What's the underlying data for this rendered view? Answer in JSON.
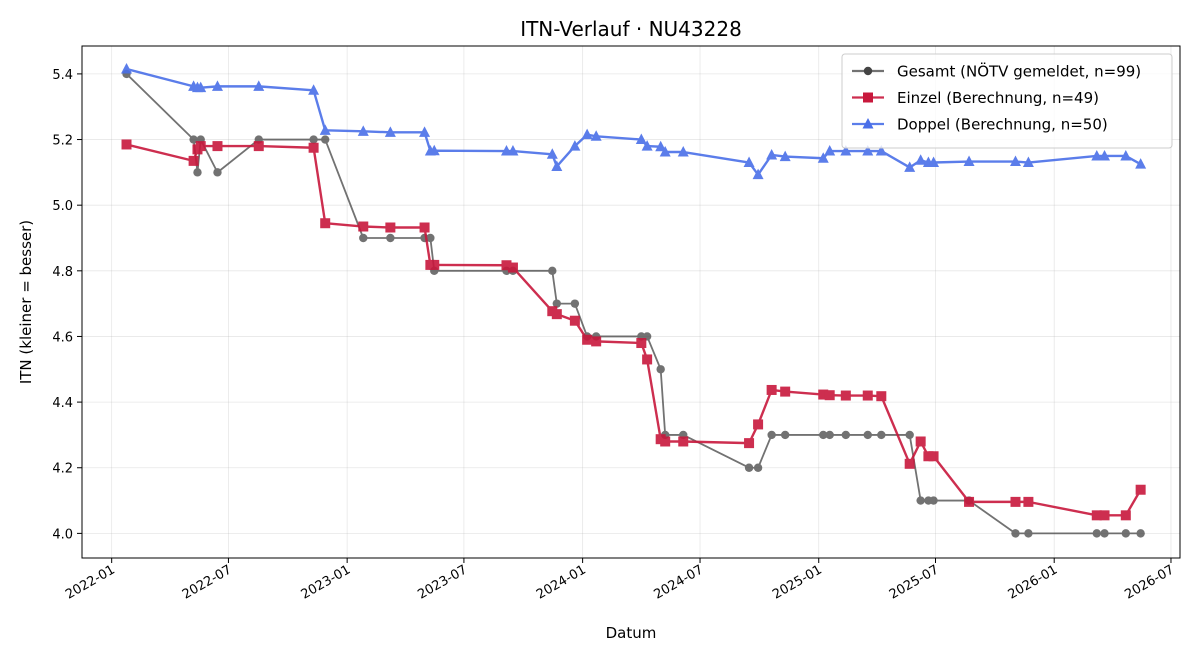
{
  "chart_data": {
    "type": "line",
    "title": "ITN-Verlauf · NU43228",
    "xlabel": "Datum",
    "ylabel": "ITN  (kleiner = besser)",
    "xlim": [
      "2021-11-16",
      "2026-07-15"
    ],
    "ylim": [
      3.925,
      5.485
    ],
    "x_ticks": [
      "2022-01-01",
      "2022-07-01",
      "2023-01-01",
      "2023-07-01",
      "2024-01-01",
      "2024-07-01",
      "2025-01-01",
      "2025-07-01",
      "2026-01-01",
      "2026-07-01"
    ],
    "x_tick_labels": [
      "2022-01",
      "2022-07",
      "2023-01",
      "2023-07",
      "2024-01",
      "2024-07",
      "2025-01",
      "2025-07",
      "2026-01",
      "2026-07"
    ],
    "y_ticks": [
      4.0,
      4.2,
      4.4,
      4.6,
      4.8,
      5.0,
      5.2,
      5.4
    ],
    "y_tick_labels": [
      "4.0",
      "4.2",
      "4.4",
      "4.6",
      "4.8",
      "5.0",
      "5.2",
      "5.4"
    ],
    "grid": true,
    "legend_position": "top-right",
    "series": [
      {
        "name": "Gesamt (NÖTV gemeldet, n=99)",
        "color": "#444444",
        "marker": "circle",
        "points": [
          [
            "2022-01-24",
            5.4
          ],
          [
            "2022-05-08",
            5.2
          ],
          [
            "2022-05-14",
            5.1
          ],
          [
            "2022-05-19",
            5.2
          ],
          [
            "2022-06-14",
            5.1
          ],
          [
            "2022-08-17",
            5.2
          ],
          [
            "2022-11-10",
            5.2
          ],
          [
            "2022-11-28",
            5.2
          ],
          [
            "2023-01-26",
            4.9
          ],
          [
            "2023-03-09",
            4.9
          ],
          [
            "2023-05-01",
            4.9
          ],
          [
            "2023-05-10",
            4.9
          ],
          [
            "2023-05-16",
            4.8
          ],
          [
            "2023-09-05",
            4.8
          ],
          [
            "2023-09-15",
            4.8
          ],
          [
            "2023-11-15",
            4.8
          ],
          [
            "2023-11-22",
            4.7
          ],
          [
            "2023-12-20",
            4.7
          ],
          [
            "2024-01-08",
            4.6
          ],
          [
            "2024-01-22",
            4.6
          ],
          [
            "2024-04-01",
            4.6
          ],
          [
            "2024-04-10",
            4.6
          ],
          [
            "2024-05-01",
            4.5
          ],
          [
            "2024-05-08",
            4.3
          ],
          [
            "2024-06-05",
            4.3
          ],
          [
            "2024-09-15",
            4.2
          ],
          [
            "2024-09-29",
            4.2
          ],
          [
            "2024-10-20",
            4.3
          ],
          [
            "2024-11-10",
            4.3
          ],
          [
            "2025-01-08",
            4.3
          ],
          [
            "2025-01-18",
            4.3
          ],
          [
            "2025-02-12",
            4.3
          ],
          [
            "2025-03-18",
            4.3
          ],
          [
            "2025-04-08",
            4.3
          ],
          [
            "2025-05-22",
            4.3
          ],
          [
            "2025-06-08",
            4.1
          ],
          [
            "2025-06-20",
            4.1
          ],
          [
            "2025-06-28",
            4.1
          ],
          [
            "2025-08-22",
            4.1
          ],
          [
            "2025-11-02",
            4.0
          ],
          [
            "2025-11-22",
            4.0
          ],
          [
            "2026-03-08",
            4.0
          ],
          [
            "2026-03-20",
            4.0
          ],
          [
            "2026-04-22",
            4.0
          ],
          [
            "2026-05-15",
            4.0
          ]
        ]
      },
      {
        "name": "Einzel (Berechnung, n=49)",
        "color": "#c8183c",
        "marker": "square",
        "points": [
          [
            "2022-01-24",
            5.185
          ],
          [
            "2022-05-08",
            5.135
          ],
          [
            "2022-05-14",
            5.17
          ],
          [
            "2022-05-19",
            5.18
          ],
          [
            "2022-06-14",
            5.18
          ],
          [
            "2022-08-17",
            5.18
          ],
          [
            "2022-11-10",
            5.175
          ],
          [
            "2022-11-28",
            4.945
          ],
          [
            "2023-01-26",
            4.935
          ],
          [
            "2023-03-09",
            4.932
          ],
          [
            "2023-05-01",
            4.932
          ],
          [
            "2023-05-10",
            4.818
          ],
          [
            "2023-05-16",
            4.818
          ],
          [
            "2023-09-05",
            4.817
          ],
          [
            "2023-09-15",
            4.81
          ],
          [
            "2023-11-15",
            4.677
          ],
          [
            "2023-11-22",
            4.668
          ],
          [
            "2023-12-20",
            4.648
          ],
          [
            "2024-01-08",
            4.59
          ],
          [
            "2024-01-22",
            4.585
          ],
          [
            "2024-04-01",
            4.58
          ],
          [
            "2024-04-10",
            4.53
          ],
          [
            "2024-05-01",
            4.287
          ],
          [
            "2024-05-08",
            4.28
          ],
          [
            "2024-06-05",
            4.28
          ],
          [
            "2024-09-15",
            4.275
          ],
          [
            "2024-09-29",
            4.332
          ],
          [
            "2024-10-20",
            4.437
          ],
          [
            "2024-11-10",
            4.432
          ],
          [
            "2025-01-08",
            4.423
          ],
          [
            "2025-01-18",
            4.421
          ],
          [
            "2025-02-12",
            4.42
          ],
          [
            "2025-03-18",
            4.42
          ],
          [
            "2025-04-08",
            4.418
          ],
          [
            "2025-05-22",
            4.212
          ],
          [
            "2025-06-08",
            4.28
          ],
          [
            "2025-06-20",
            4.235
          ],
          [
            "2025-06-28",
            4.235
          ],
          [
            "2025-08-22",
            4.096
          ],
          [
            "2025-11-02",
            4.096
          ],
          [
            "2025-11-22",
            4.096
          ],
          [
            "2026-03-08",
            4.055
          ],
          [
            "2026-03-20",
            4.055
          ],
          [
            "2026-04-22",
            4.055
          ],
          [
            "2026-05-15",
            4.133
          ]
        ]
      },
      {
        "name": "Doppel (Berechnung, n=50)",
        "color": "#4a6fe8",
        "marker": "triangle",
        "points": [
          [
            "2022-01-24",
            5.415
          ],
          [
            "2022-05-08",
            5.362
          ],
          [
            "2022-05-14",
            5.358
          ],
          [
            "2022-05-19",
            5.358
          ],
          [
            "2022-06-14",
            5.362
          ],
          [
            "2022-08-17",
            5.362
          ],
          [
            "2022-11-10",
            5.35
          ],
          [
            "2022-11-28",
            5.228
          ],
          [
            "2023-01-26",
            5.225
          ],
          [
            "2023-03-09",
            5.222
          ],
          [
            "2023-05-01",
            5.222
          ],
          [
            "2023-05-10",
            5.165
          ],
          [
            "2023-05-16",
            5.166
          ],
          [
            "2023-09-05",
            5.165
          ],
          [
            "2023-09-15",
            5.165
          ],
          [
            "2023-11-15",
            5.155
          ],
          [
            "2023-11-22",
            5.118
          ],
          [
            "2023-12-20",
            5.18
          ],
          [
            "2024-01-08",
            5.215
          ],
          [
            "2024-01-22",
            5.21
          ],
          [
            "2024-04-01",
            5.2
          ],
          [
            "2024-04-10",
            5.18
          ],
          [
            "2024-05-01",
            5.178
          ],
          [
            "2024-05-08",
            5.162
          ],
          [
            "2024-06-05",
            5.162
          ],
          [
            "2024-09-15",
            5.13
          ],
          [
            "2024-09-29",
            5.093
          ],
          [
            "2024-10-20",
            5.153
          ],
          [
            "2024-11-10",
            5.148
          ],
          [
            "2025-01-08",
            5.143
          ],
          [
            "2025-01-18",
            5.165
          ],
          [
            "2025-02-12",
            5.165
          ],
          [
            "2025-03-18",
            5.165
          ],
          [
            "2025-04-08",
            5.165
          ],
          [
            "2025-05-22",
            5.115
          ],
          [
            "2025-06-08",
            5.137
          ],
          [
            "2025-06-20",
            5.13
          ],
          [
            "2025-06-28",
            5.13
          ],
          [
            "2025-08-22",
            5.133
          ],
          [
            "2025-11-02",
            5.133
          ],
          [
            "2025-11-22",
            5.13
          ],
          [
            "2026-03-08",
            5.15
          ],
          [
            "2026-03-20",
            5.15
          ],
          [
            "2026-04-22",
            5.15
          ],
          [
            "2026-05-15",
            5.125
          ]
        ]
      }
    ]
  }
}
